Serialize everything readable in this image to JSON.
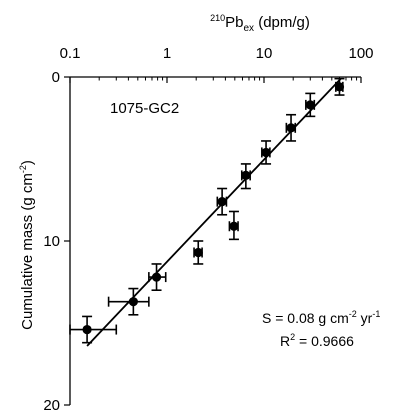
{
  "chart_data": {
    "type": "scatter",
    "panel_label": "1075-GC2",
    "x_axis": {
      "label_sup": "210",
      "label_main": "Pb",
      "label_sub": "ex",
      "label_tail": " (dpm/g)",
      "position": "top",
      "scale": "log",
      "range": [
        0.1,
        100
      ],
      "ticks": [
        0.1,
        1,
        10,
        100
      ],
      "tick_labels": [
        "0.1",
        "1",
        "10",
        "100"
      ]
    },
    "y_axis": {
      "label_main": "Cumulative mass (g cm",
      "label_sup": "-2",
      "label_tail": ")",
      "inverted": true,
      "range": [
        0,
        20
      ],
      "ticks": [
        0,
        10,
        20
      ],
      "tick_labels": [
        "0",
        "10",
        "20"
      ]
    },
    "points": [
      {
        "x": 0.15,
        "y": 15.4,
        "xerr": [
          0.1,
          0.3
        ],
        "yerr": [
          14.6,
          16.2
        ]
      },
      {
        "x": 0.45,
        "y": 13.7,
        "xerr": [
          0.25,
          0.65
        ],
        "yerr": [
          12.9,
          14.5
        ]
      },
      {
        "x": 0.78,
        "y": 12.2,
        "xerr": [
          0.65,
          0.97
        ],
        "yerr": [
          11.4,
          13.0
        ]
      },
      {
        "x": 2.1,
        "y": 10.7,
        "xerr": [
          1.9,
          2.3
        ],
        "yerr": [
          10.0,
          11.4
        ]
      },
      {
        "x": 3.7,
        "y": 7.6,
        "xerr": [
          3.3,
          4.1
        ],
        "yerr": [
          6.8,
          8.4
        ]
      },
      {
        "x": 4.9,
        "y": 9.1,
        "xerr": [
          4.4,
          5.4
        ],
        "yerr": [
          8.2,
          9.9
        ]
      },
      {
        "x": 6.5,
        "y": 6.0,
        "xerr": [
          5.9,
          7.2
        ],
        "yerr": [
          5.3,
          6.8
        ]
      },
      {
        "x": 10.5,
        "y": 4.6,
        "xerr": [
          9.5,
          11.5
        ],
        "yerr": [
          3.9,
          5.3
        ]
      },
      {
        "x": 19.0,
        "y": 3.1,
        "xerr": [
          17.0,
          21.0
        ],
        "yerr": [
          2.3,
          3.9
        ]
      },
      {
        "x": 30.0,
        "y": 1.7,
        "xerr": [
          27.0,
          33.0
        ],
        "yerr": [
          1.0,
          2.4
        ]
      },
      {
        "x": 60.0,
        "y": 0.6,
        "xerr": [
          55.0,
          65.0
        ],
        "yerr": [
          0.1,
          1.1
        ]
      }
    ],
    "fit_line": {
      "x": [
        0.15,
        62
      ],
      "y": [
        16.4,
        0.1
      ]
    },
    "annotation": {
      "s_prefix": "S = 0.08 g cm",
      "s_sup1": "-2",
      "s_mid": " yr",
      "s_sup2": "-1",
      "r2_prefix": "R",
      "r2_sup": "2",
      "r2_value": " = 0.9666"
    }
  }
}
